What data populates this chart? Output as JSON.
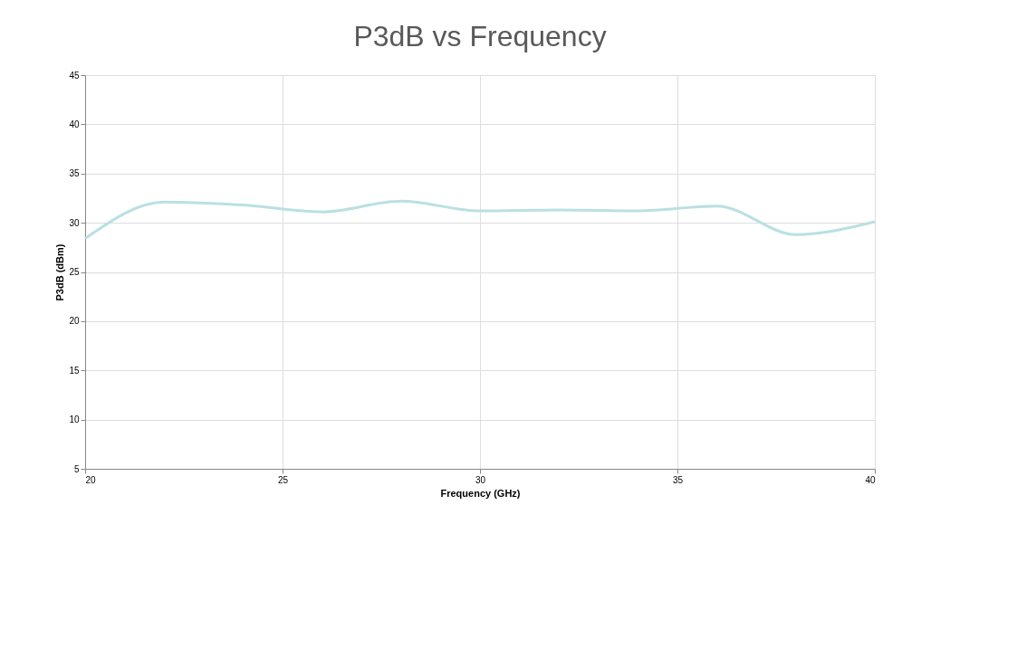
{
  "chart_data": {
    "type": "line",
    "title": "P3dB vs Frequency",
    "xlabel": "Frequency (GHz)",
    "ylabel": "P3dB (dBm)",
    "x": [
      20,
      22,
      24,
      26,
      28,
      30,
      32,
      34,
      36,
      38,
      40
    ],
    "series": [
      {
        "color": "#b9e0e3",
        "values": [
          28.4,
          32.1,
          31.8,
          31.1,
          32.2,
          31.2,
          31.3,
          31.2,
          31.7,
          28.8,
          30.1
        ]
      }
    ],
    "xlim": [
      20,
      40
    ],
    "xticks": [
      20,
      25,
      30,
      35,
      40
    ],
    "ylim": [
      5,
      45
    ],
    "yticks": [
      5,
      10,
      15,
      20,
      25,
      30,
      35,
      40,
      45
    ],
    "grid": true,
    "marker": "none",
    "line_style": "solid"
  }
}
